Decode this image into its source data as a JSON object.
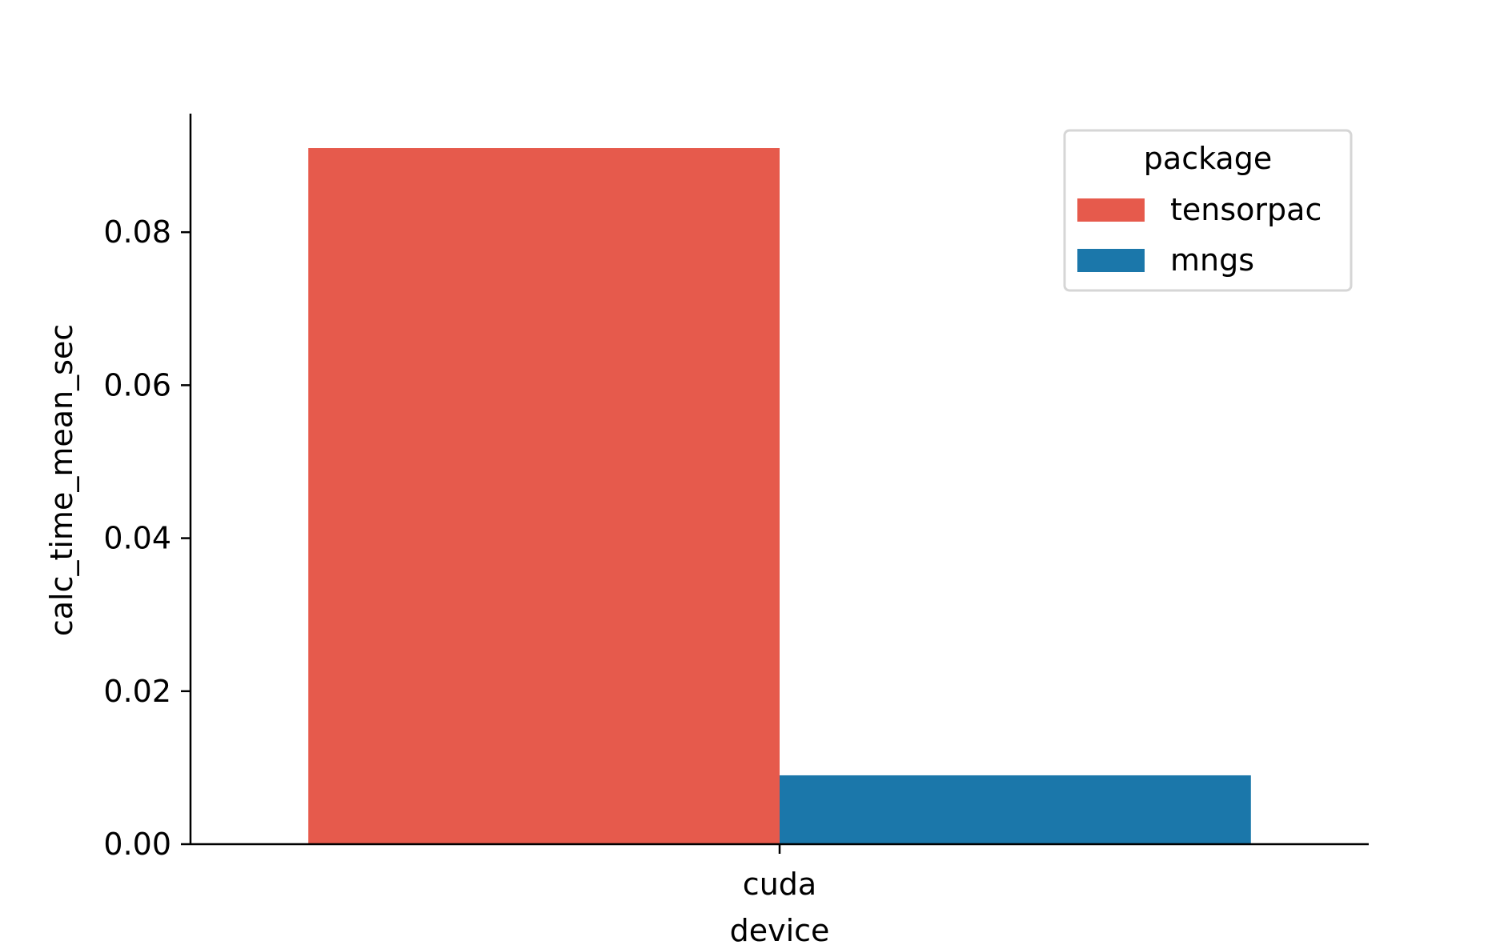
{
  "chart_data": {
    "type": "bar",
    "categories": [
      "cuda"
    ],
    "series": [
      {
        "name": "tensorpac",
        "values": [
          0.091
        ],
        "color": "#e65a4c"
      },
      {
        "name": "mngs",
        "values": [
          0.009
        ],
        "color": "#1b77aa"
      }
    ],
    "xlabel": "device",
    "ylabel": "calc_time_mean_sec",
    "ylim": [
      0,
      0.0955
    ],
    "yticks": [
      0.0,
      0.02,
      0.04,
      0.06,
      0.08
    ],
    "ytick_labels": [
      "0.00",
      "0.02",
      "0.04",
      "0.06",
      "0.08"
    ],
    "grid": false,
    "legend": {
      "title": "package",
      "placement": "top-right"
    }
  }
}
